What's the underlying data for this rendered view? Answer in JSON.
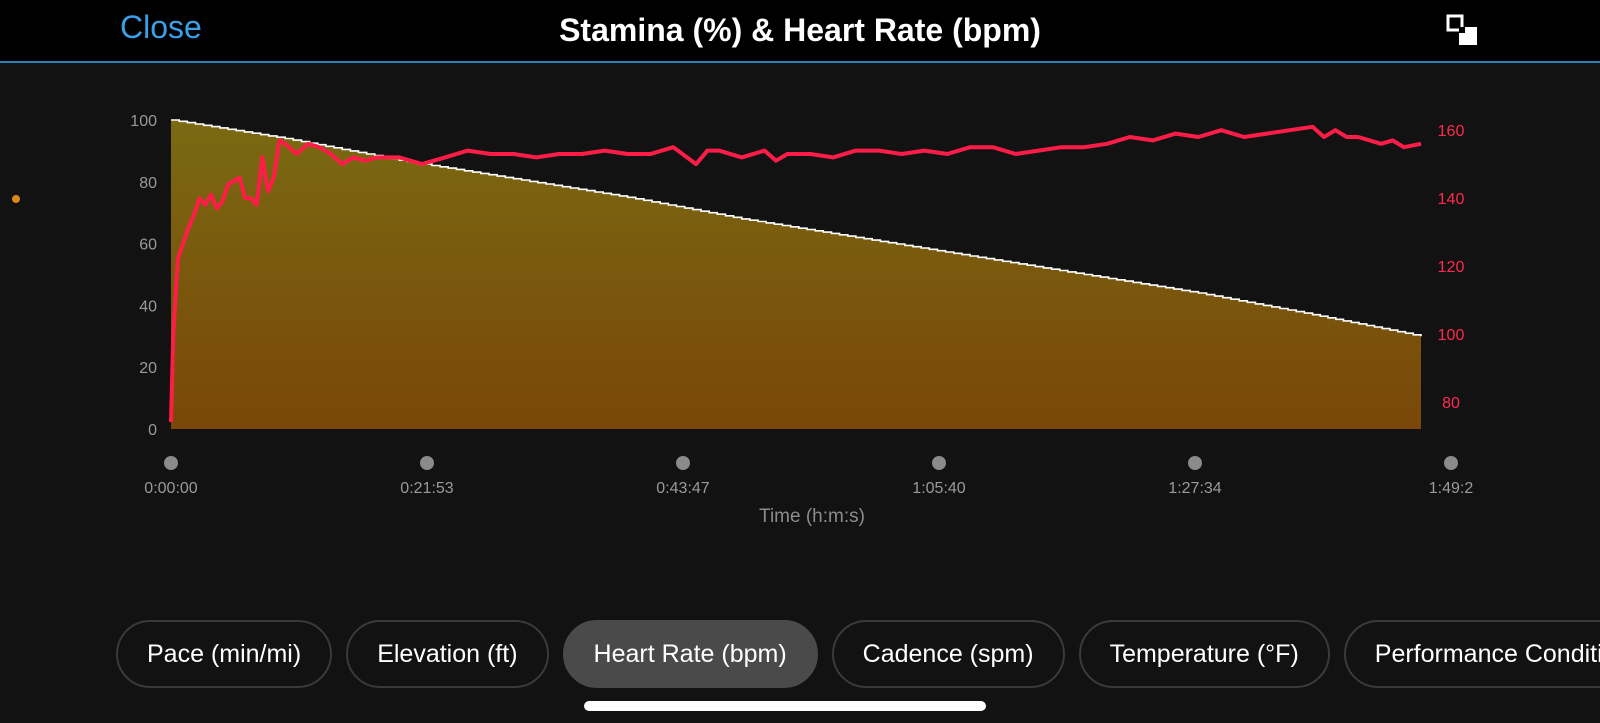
{
  "header": {
    "close_label": "Close",
    "title": "Stamina (%) & Heart Rate (bpm)",
    "expand_icon": "expand-icon"
  },
  "chart_data": {
    "type": "area+line",
    "title": "Stamina (%) & Heart Rate (bpm)",
    "xlabel": "Time (h:m:s)",
    "x_ticks": [
      "0:00:00",
      "0:21:53",
      "0:43:47",
      "1:05:40",
      "1:27:34",
      "1:49:2"
    ],
    "x_range_minutes": [
      0,
      109.5
    ],
    "y_left_label": "Stamina (%)",
    "y_left_ticks": [
      100,
      80,
      60,
      40,
      20,
      0
    ],
    "y_left_range": [
      0,
      100
    ],
    "y_right_label": "Heart Rate (bpm)",
    "y_right_ticks": [
      160,
      140,
      120,
      100,
      80
    ],
    "y_right_range": [
      72,
      163
    ],
    "series": [
      {
        "name": "Stamina (%)",
        "color_top": "#7a6a12",
        "color_bottom": "#7a4708",
        "x": [
          0,
          10,
          20,
          30,
          40,
          50,
          60,
          70,
          80,
          90,
          100,
          109.5
        ],
        "values": [
          100,
          94,
          87,
          81,
          75,
          68,
          62,
          56,
          50,
          44,
          37,
          30
        ]
      },
      {
        "name": "Heart Rate (bpm)",
        "color": "#ff1d48",
        "x": [
          0,
          0.2,
          0.6,
          1,
          1.5,
          2,
          2.5,
          3,
          3.5,
          4,
          4.5,
          5,
          5.5,
          6,
          6.5,
          7,
          7.5,
          8,
          8.5,
          9,
          9.5,
          10,
          11,
          12,
          13,
          14,
          15,
          16,
          17,
          18,
          20,
          22,
          24,
          26,
          28,
          30,
          32,
          34,
          36,
          38,
          40,
          42,
          44,
          46,
          47,
          48,
          50,
          52,
          53,
          54,
          56,
          58,
          60,
          62,
          64,
          66,
          68,
          70,
          72,
          74,
          76,
          78,
          80,
          82,
          84,
          86,
          88,
          90,
          92,
          94,
          96,
          98,
          100,
          101,
          102,
          103,
          104,
          106,
          107,
          108,
          109.5
        ],
        "values": [
          74,
          100,
          122,
          126,
          131,
          135,
          140,
          138,
          141,
          137,
          139,
          144,
          145,
          146,
          140,
          140,
          138,
          152,
          142,
          146,
          157,
          156,
          153,
          156,
          155,
          153,
          150,
          152,
          151,
          152,
          152,
          150,
          152,
          154,
          153,
          153,
          152,
          153,
          153,
          154,
          153,
          153,
          155,
          150,
          154,
          154,
          152,
          154,
          151,
          153,
          153,
          152,
          154,
          154,
          153,
          154,
          153,
          155,
          155,
          153,
          154,
          155,
          155,
          156,
          158,
          157,
          159,
          158,
          160,
          158,
          159,
          160,
          161,
          158,
          160,
          158,
          158,
          156,
          157,
          155,
          156
        ]
      }
    ]
  },
  "tabs": [
    {
      "label": "Pace (min/mi)",
      "active": false
    },
    {
      "label": "Elevation (ft)",
      "active": false
    },
    {
      "label": "Heart Rate (bpm)",
      "active": true
    },
    {
      "label": "Cadence (spm)",
      "active": false
    },
    {
      "label": "Temperature (°F)",
      "active": false
    },
    {
      "label": "Performance Condition",
      "active": false
    }
  ]
}
